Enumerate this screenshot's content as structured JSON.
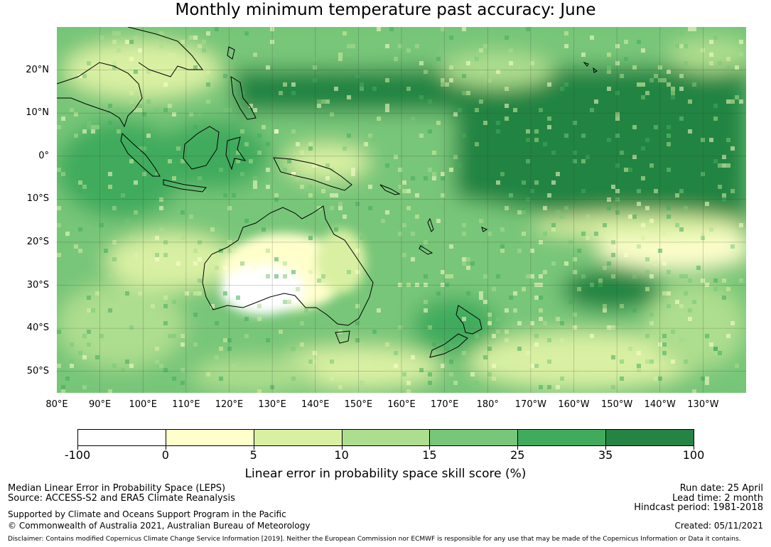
{
  "title": "Monthly minimum temperature past accuracy: June",
  "map": {
    "lat_labels": [
      "20°N",
      "10°N",
      "0°",
      "10°S",
      "20°S",
      "30°S",
      "40°S",
      "50°S"
    ],
    "lon_labels": [
      "80°E",
      "90°E",
      "100°E",
      "110°E",
      "120°E",
      "130°E",
      "140°E",
      "150°E",
      "160°E",
      "170°E",
      "180°",
      "170°W",
      "160°W",
      "150°W",
      "140°W",
      "130°W"
    ],
    "extent": {
      "lon_min": 80,
      "lon_max": 240,
      "lat_min": -55,
      "lat_max": 30
    }
  },
  "colorbar": {
    "title": "Linear error in probability space skill score (%)",
    "ticks": [
      "-100",
      "0",
      "5",
      "10",
      "15",
      "25",
      "35",
      "100"
    ],
    "colors": [
      "#ffffff",
      "#ffffcc",
      "#d9f0a3",
      "#addd8e",
      "#78c679",
      "#41ab5d",
      "#238443"
    ]
  },
  "footer": {
    "left": [
      "Median Linear Error in Probability Space (LEPS)",
      "Source: ACCESS-S2 and ERA5 Climate Reanalysis",
      "Supported by Climate and Oceans Support Program in the Pacific",
      "© Commonwealth of Australia 2021, Australian Bureau of Meteorology"
    ],
    "right": [
      "Run date: 25 April",
      "Lead time: 2 month",
      "Hindcast period: 1981-2018",
      "Created: 05/11/2021"
    ],
    "disclaimer": "Disclaimer: Contains modified Copernicus Climate Change Service Information [2019]. Neither the European Commission nor ECMWF is responsible for any use that may be made of the Copernicus Information or Data it contains."
  }
}
